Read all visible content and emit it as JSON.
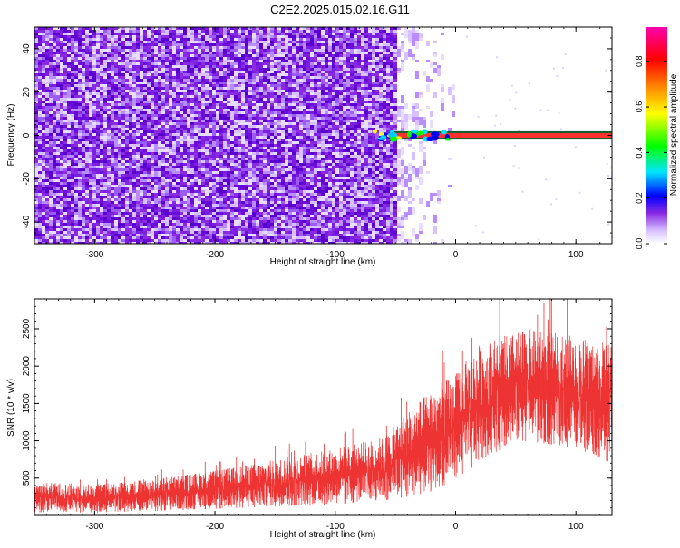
{
  "title": "C2E2.2025.015.02.16.G11",
  "chart_data": [
    {
      "type": "heatmap",
      "xlabel": "Height of straight line (km)",
      "ylabel": "Frequency (Hz)",
      "xlim": [
        -350,
        130
      ],
      "ylim": [
        -50,
        50
      ],
      "x_ticks": [
        -300,
        -200,
        -100,
        0,
        100
      ],
      "y_ticks": [
        -40,
        -20,
        0,
        20,
        40
      ],
      "colorbar": {
        "label": "Normalized spectral amplitude",
        "range": [
          0.0,
          0.95
        ],
        "ticks": [
          0.0,
          0.2,
          0.4,
          0.6,
          0.8
        ],
        "colors": [
          "#ffffff",
          "#d7c2ff",
          "#8a2be2",
          "#0000ff",
          "#00e5ff",
          "#00ff00",
          "#ffff00",
          "#ff8c00",
          "#ff0000",
          "#ff00aa"
        ]
      },
      "description_regions": [
        {
          "x_range": [
            -350,
            -50
          ],
          "y_range": [
            -50,
            50
          ],
          "amplitude": 0.1,
          "note_color": "#8a2be2"
        },
        {
          "x_range": [
            -70,
            130
          ],
          "y_range": [
            -1.5,
            1.5
          ],
          "amplitude": 0.9,
          "note_color": "#ff0000"
        }
      ]
    },
    {
      "type": "line",
      "xlabel": "Height of straight line (km)",
      "ylabel": "SNR (10 * v/v)",
      "xlim": [
        -350,
        130
      ],
      "ylim": [
        0,
        2900
      ],
      "x_ticks": [
        -300,
        -200,
        -100,
        0,
        100
      ],
      "y_ticks": [
        500,
        1000,
        1500,
        2000,
        2500
      ],
      "color": "#ee3333",
      "envelope": {
        "x": [
          -350,
          -300,
          -250,
          -200,
          -150,
          -100,
          -60,
          -40,
          -20,
          0,
          20,
          40,
          60,
          80,
          100,
          130
        ],
        "low": [
          40,
          40,
          60,
          90,
          120,
          150,
          200,
          250,
          300,
          500,
          700,
          900,
          1000,
          950,
          900,
          700
        ],
        "high": [
          450,
          420,
          500,
          600,
          750,
          900,
          1050,
          1400,
          1700,
          1900,
          2300,
          2400,
          2500,
          2450,
          2400,
          2300
        ]
      }
    }
  ]
}
